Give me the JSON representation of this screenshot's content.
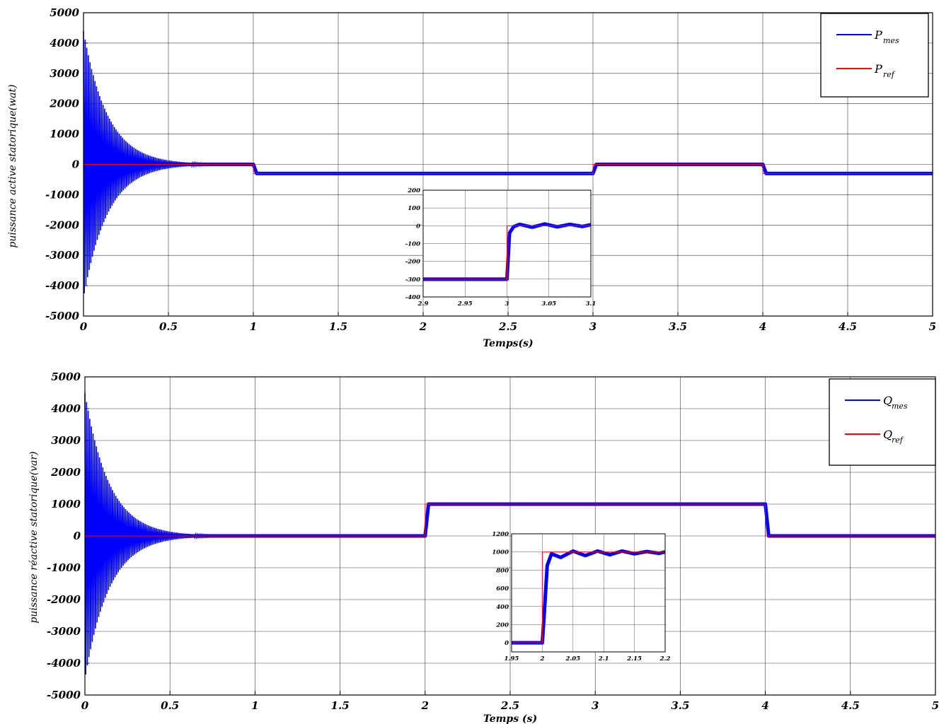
{
  "chart_data": [
    {
      "type": "line",
      "xlabel": "Temps(s)",
      "ylabel": "puissance active statorique(wat)",
      "xlim": [
        0,
        5
      ],
      "ylim": [
        -5000,
        5000
      ],
      "xticks": [
        "0",
        "0.5",
        "1",
        "1.5",
        "2",
        "2.5",
        "3",
        "3.5",
        "4",
        "4.5",
        "5"
      ],
      "yticks": [
        "5000",
        "4000",
        "3000",
        "2000",
        "1000",
        "0",
        "-1000",
        "-2000",
        "-3000",
        "-4000",
        "-5000"
      ],
      "grid": true,
      "legend_position": "top-right",
      "series": [
        {
          "name": "P",
          "subscript": "mes",
          "color": "#0000ff",
          "x": [
            0,
            1,
            1.02,
            3,
            3.02,
            4,
            4.02,
            5
          ],
          "y": [
            0,
            0,
            -300,
            -300,
            0,
            0,
            -300,
            -300
          ],
          "initial_oscillation_amplitude": 4400
        },
        {
          "name": "P",
          "subscript": "ref",
          "color": "#ff0000",
          "x": [
            0,
            1,
            1,
            3,
            3,
            4,
            4,
            5
          ],
          "y": [
            0,
            0,
            -300,
            -300,
            0,
            0,
            -300,
            -300
          ]
        }
      ],
      "inset": {
        "xlim": [
          2.9,
          3.1
        ],
        "ylim": [
          -400,
          200
        ],
        "xticks": [
          "2.9",
          "2.95",
          "3",
          "3.05",
          "3.1"
        ],
        "yticks": [
          "200",
          "100",
          "0",
          "-100",
          "-200",
          "-300",
          "-400"
        ],
        "series": [
          {
            "name": "P_mes",
            "color": "#0000ff",
            "x": [
              2.9,
              3.0,
              3.003,
              3.008,
              3.015,
              3.03,
              3.045,
              3.06,
              3.075,
              3.09,
              3.1
            ],
            "y": [
              -300,
              -300,
              -40,
              -5,
              8,
              -8,
              10,
              -6,
              8,
              -4,
              6
            ]
          },
          {
            "name": "P_ref",
            "color": "#ff0000",
            "x": [
              2.9,
              3.0,
              3.0,
              3.1
            ],
            "y": [
              -300,
              -300,
              0,
              0
            ]
          }
        ]
      }
    },
    {
      "type": "line",
      "xlabel": "Temps (s)",
      "ylabel": "puissance réactive statorique(var)",
      "xlim": [
        0,
        5
      ],
      "ylim": [
        -5000,
        5000
      ],
      "xticks": [
        "0",
        "0.5",
        "1",
        "1.5",
        "2",
        "2.5",
        "3",
        "3.5",
        "4",
        "4.5",
        "5"
      ],
      "yticks": [
        "5000",
        "4000",
        "3000",
        "2000",
        "1000",
        "0",
        "-1000",
        "-2000",
        "-3000",
        "-4000",
        "-5000"
      ],
      "grid": true,
      "legend_position": "top-right",
      "series": [
        {
          "name": "Q",
          "subscript": "mes",
          "color": "#0000ff",
          "x": [
            0,
            2,
            2.02,
            4,
            4.02,
            5
          ],
          "y": [
            0,
            0,
            1000,
            1000,
            0,
            0
          ],
          "initial_oscillation_amplitude": 4500
        },
        {
          "name": "Q",
          "subscript": "ref",
          "color": "#ff0000",
          "x": [
            0,
            2,
            2,
            4,
            4,
            5
          ],
          "y": [
            0,
            0,
            1000,
            1000,
            0,
            0
          ]
        }
      ],
      "inset": {
        "xlim": [
          1.95,
          2.2
        ],
        "ylim": [
          -100,
          1200
        ],
        "xticks": [
          "1.95",
          "2",
          "2.05",
          "2.1",
          "2.15",
          "2.2"
        ],
        "yticks": [
          "1200",
          "1000",
          "800",
          "600",
          "400",
          "200",
          "0"
        ],
        "series": [
          {
            "name": "Q_mes",
            "color": "#0000ff",
            "x": [
              1.95,
              2.0,
              2.003,
              2.008,
              2.015,
              2.03,
              2.05,
              2.07,
              2.09,
              2.11,
              2.13,
              2.15,
              2.17,
              2.19,
              2.2
            ],
            "y": [
              0,
              0,
              300,
              850,
              980,
              940,
              1010,
              960,
              1010,
              970,
              1010,
              980,
              1005,
              985,
              1000
            ]
          },
          {
            "name": "Q_ref",
            "color": "#ff0000",
            "x": [
              1.95,
              2.0,
              2.0,
              2.2
            ],
            "y": [
              0,
              0,
              1000,
              1000
            ]
          }
        ]
      }
    }
  ]
}
